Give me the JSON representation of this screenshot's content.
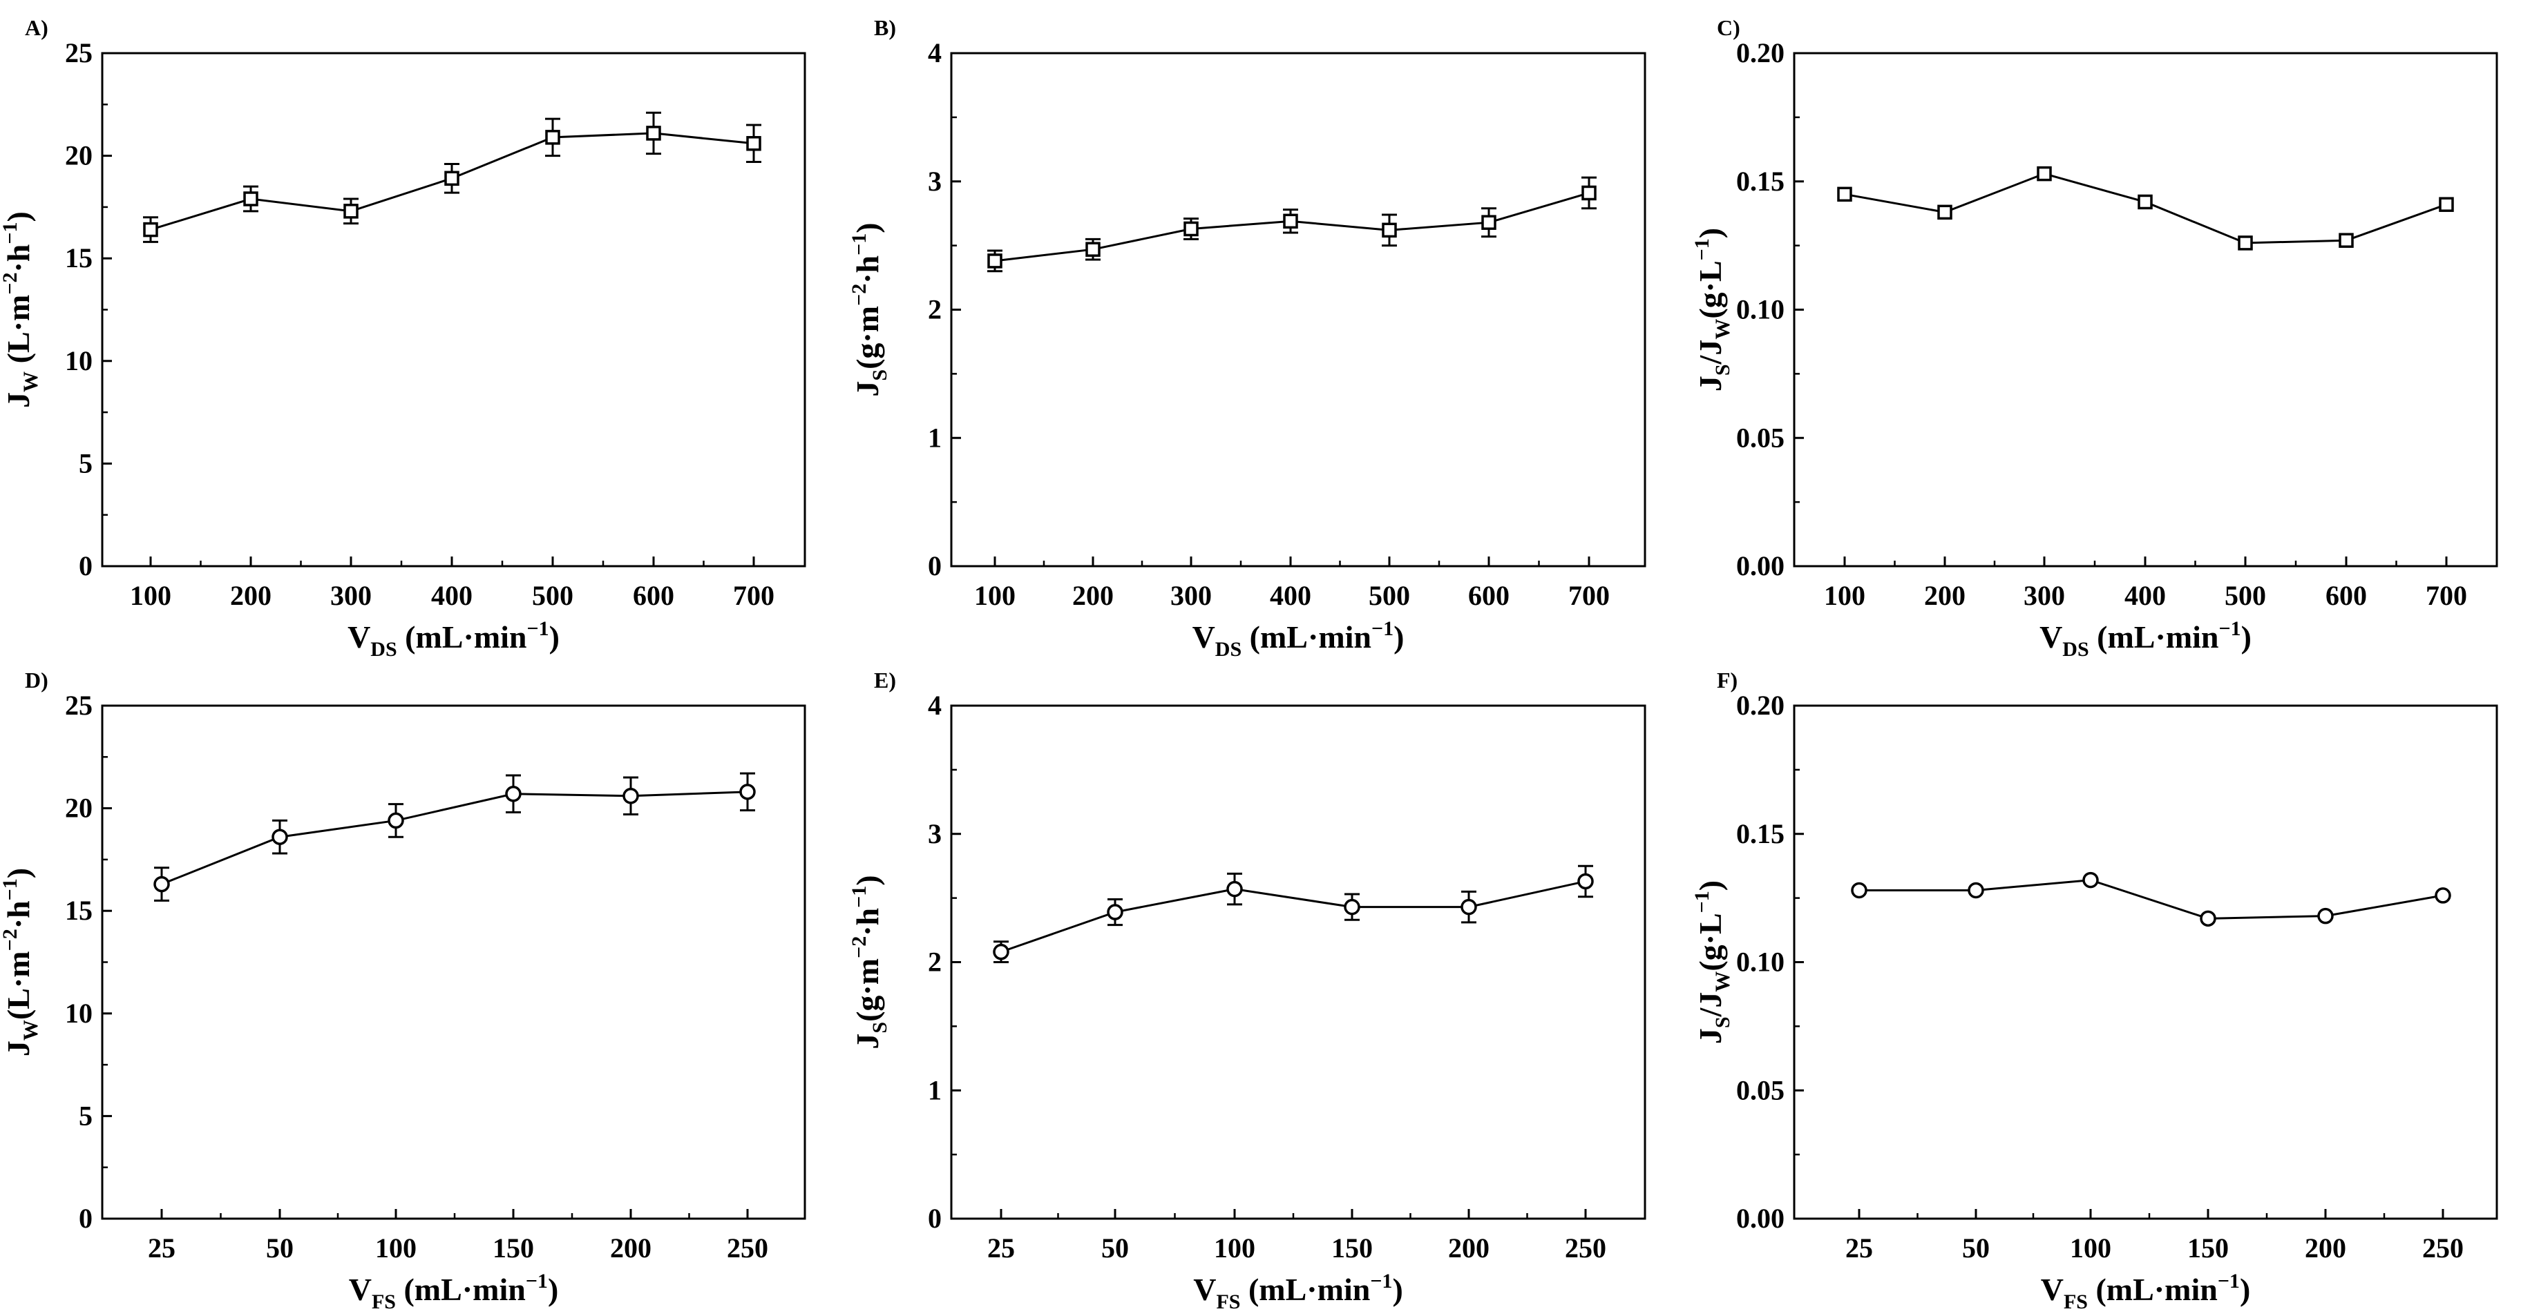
{
  "chart_data": [
    {
      "panel": "A)",
      "type": "line",
      "marker": "square",
      "categories": [
        "100",
        "200",
        "300",
        "400",
        "500",
        "600",
        "700"
      ],
      "values": [
        16.4,
        17.9,
        17.3,
        18.9,
        20.9,
        21.1,
        20.6
      ],
      "errors": [
        0.6,
        0.6,
        0.6,
        0.7,
        0.9,
        1.0,
        0.9
      ],
      "ylim": [
        0,
        25
      ],
      "yticks": [
        "0",
        "5",
        "10",
        "15",
        "20",
        "25"
      ],
      "ytick_values": [
        0,
        5,
        10,
        15,
        20,
        25
      ],
      "xlabel": {
        "main": "V",
        "sub": "DS",
        "rest": " (mL·min",
        "sup": "−1",
        "end": ")"
      },
      "ylabel": {
        "main": "J",
        "sub": "W",
        "rest": " (L·m",
        "sup1": "−2",
        "mid": "·h",
        "sup2": "−1",
        "end": ")"
      }
    },
    {
      "panel": "B)",
      "type": "line",
      "marker": "square",
      "categories": [
        "100",
        "200",
        "300",
        "400",
        "500",
        "600",
        "700"
      ],
      "values": [
        2.38,
        2.47,
        2.63,
        2.69,
        2.62,
        2.68,
        2.91
      ],
      "errors": [
        0.08,
        0.08,
        0.08,
        0.09,
        0.12,
        0.11,
        0.12
      ],
      "ylim": [
        0,
        4
      ],
      "yticks": [
        "0",
        "1",
        "2",
        "3",
        "4"
      ],
      "ytick_values": [
        0,
        1,
        2,
        3,
        4
      ],
      "xlabel": {
        "main": "V",
        "sub": "DS",
        "rest": " (mL·min",
        "sup": "−1",
        "end": ")"
      },
      "ylabel": {
        "main": "J",
        "sub": "S",
        "rest": "(g·m",
        "sup1": "−2",
        "mid": "·h",
        "sup2": "−1",
        "end": ")"
      }
    },
    {
      "panel": "C)",
      "type": "line",
      "marker": "square",
      "categories": [
        "100",
        "200",
        "300",
        "400",
        "500",
        "600",
        "700"
      ],
      "values": [
        0.145,
        0.138,
        0.153,
        0.142,
        0.126,
        0.127,
        0.141
      ],
      "errors": [],
      "ylim": [
        0,
        0.2
      ],
      "yticks": [
        "0.00",
        "0.05",
        "0.10",
        "0.15",
        "0.20"
      ],
      "ytick_values": [
        0,
        0.05,
        0.1,
        0.15,
        0.2
      ],
      "xlabel": {
        "main": "V",
        "sub": "DS",
        "rest": " (mL·min",
        "sup": "−1",
        "end": ")"
      },
      "ylabel": {
        "main": "J",
        "sub": "S",
        "rest": "/J",
        "sub2": "W",
        "rest2": "(g·L",
        "sup1": "−1",
        "end": ")"
      }
    },
    {
      "panel": "D)",
      "type": "line",
      "marker": "circle",
      "categories": [
        "25",
        "50",
        "100",
        "150",
        "200",
        "250"
      ],
      "values": [
        16.3,
        18.6,
        19.4,
        20.7,
        20.6,
        20.8
      ],
      "errors": [
        0.8,
        0.8,
        0.8,
        0.9,
        0.9,
        0.9
      ],
      "ylim": [
        0,
        25
      ],
      "yticks": [
        "0",
        "5",
        "10",
        "15",
        "20",
        "25"
      ],
      "ytick_values": [
        0,
        5,
        10,
        15,
        20,
        25
      ],
      "xlabel": {
        "main": "V",
        "sub": "FS",
        "rest": " (mL·min",
        "sup": "−1",
        "end": ")"
      },
      "ylabel": {
        "main": "J",
        "sub": "W",
        "rest": "(L·m",
        "sup1": "−2",
        "mid": "·h",
        "sup2": "−1",
        "end": ")"
      }
    },
    {
      "panel": "E)",
      "type": "line",
      "marker": "circle",
      "categories": [
        "25",
        "50",
        "100",
        "150",
        "200",
        "250"
      ],
      "values": [
        2.08,
        2.39,
        2.57,
        2.43,
        2.43,
        2.63
      ],
      "errors": [
        0.08,
        0.1,
        0.12,
        0.1,
        0.12,
        0.12
      ],
      "ylim": [
        0,
        4
      ],
      "yticks": [
        "0",
        "1",
        "2",
        "3",
        "4"
      ],
      "ytick_values": [
        0,
        1,
        2,
        3,
        4
      ],
      "xlabel": {
        "main": "V",
        "sub": "FS",
        "rest": " (mL·min",
        "sup": "−1",
        "end": ")"
      },
      "ylabel": {
        "main": "J",
        "sub": "S",
        "rest": "(g·m",
        "sup1": "−2",
        "mid": "·h",
        "sup2": "−1",
        "end": ")"
      }
    },
    {
      "panel": "F)",
      "type": "line",
      "marker": "circle",
      "categories": [
        "25",
        "50",
        "100",
        "150",
        "200",
        "250"
      ],
      "values": [
        0.128,
        0.128,
        0.132,
        0.117,
        0.118,
        0.126
      ],
      "errors": [],
      "ylim": [
        0,
        0.2
      ],
      "yticks": [
        "0.00",
        "0.05",
        "0.10",
        "0.15",
        "0.20"
      ],
      "ytick_values": [
        0,
        0.05,
        0.1,
        0.15,
        0.2
      ],
      "xlabel": {
        "main": "V",
        "sub": "FS",
        "rest": " (mL·min",
        "sup": "−1",
        "end": ")"
      },
      "ylabel": {
        "main": "J",
        "sub": "S",
        "rest": "/J",
        "sub2": "W",
        "rest2": "(g·L",
        "sup1": "−1",
        "end": ")"
      }
    }
  ]
}
